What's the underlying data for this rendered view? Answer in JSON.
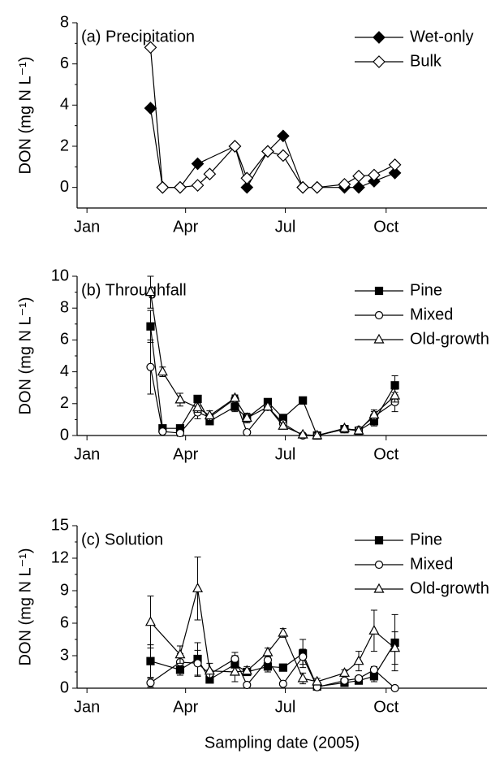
{
  "chart_data": [
    {
      "type": "line",
      "title": "(a) Precipitation",
      "ylabel": "DON (mg N L⁻¹)",
      "xlim": [
        -8,
        366
      ],
      "xticks": [
        {
          "value": 1,
          "label": "Jan"
        },
        {
          "value": 91,
          "label": "Apr"
        },
        {
          "value": 182,
          "label": "Jul"
        },
        {
          "value": 274,
          "label": "Oct"
        }
      ],
      "ylim": [
        -1,
        8
      ],
      "yticks": [
        0,
        2,
        4,
        6,
        8
      ],
      "series": [
        {
          "name": "Wet-only",
          "color": "#000000",
          "marker": "diamond",
          "filled": true,
          "x": [
            59,
            70,
            86,
            102,
            136,
            147,
            166,
            180,
            198,
            211,
            236,
            249,
            263,
            282
          ],
          "values": [
            3.85,
            0,
            0,
            1.15,
            2.0,
            0,
            1.75,
            2.5,
            0,
            0,
            0,
            0,
            0.3,
            0.7
          ]
        },
        {
          "name": "Bulk",
          "color": "#000000",
          "marker": "diamond",
          "filled": false,
          "x": [
            59,
            70,
            86,
            102,
            113,
            136,
            147,
            166,
            180,
            198,
            211,
            236,
            249,
            263,
            282
          ],
          "values": [
            6.8,
            0,
            0,
            0.1,
            0.65,
            2.0,
            0.45,
            1.75,
            1.55,
            0,
            0,
            0.15,
            0.55,
            0.6,
            1.1
          ]
        }
      ]
    },
    {
      "type": "line",
      "title": "(b) Throughfall",
      "ylabel": "DON (mg N L⁻¹)",
      "xlim": [
        -8,
        366
      ],
      "xticks": [
        {
          "value": 1,
          "label": "Jan"
        },
        {
          "value": 91,
          "label": "Apr"
        },
        {
          "value": 182,
          "label": "Jul"
        },
        {
          "value": 274,
          "label": "Oct"
        }
      ],
      "ylim": [
        0,
        10
      ],
      "yticks": [
        0,
        2,
        4,
        6,
        8,
        10
      ],
      "x": [
        59,
        70,
        86,
        102,
        113,
        136,
        147,
        166,
        180,
        198,
        211,
        236,
        249,
        263,
        282
      ],
      "series": [
        {
          "name": "Pine",
          "color": "#000000",
          "marker": "square",
          "filled": true,
          "values": [
            6.85,
            0.45,
            0.45,
            2.3,
            0.9,
            1.8,
            1.1,
            2.1,
            1.1,
            2.2,
            0,
            0.4,
            0.3,
            0.9,
            3.15
          ],
          "errors": [
            1.0,
            0.2,
            0.2,
            0.2,
            0.2,
            0.3,
            0.2,
            0.1,
            0.2,
            0.1,
            0.05,
            0.1,
            0.1,
            0.3,
            0.6
          ]
        },
        {
          "name": "Mixed",
          "color": "#000000",
          "marker": "circle",
          "filled": false,
          "values": [
            4.3,
            0.25,
            0.15,
            1.45,
            1.15,
            2.3,
            0.2,
            1.8,
            0.75,
            0,
            0,
            0.4,
            0.35,
            1.2,
            2.1
          ],
          "errors": [
            1.7,
            0.1,
            0.2,
            0.4,
            0.2,
            0.2,
            0.1,
            0.2,
            0.2,
            0,
            0,
            0.1,
            0.1,
            0.3,
            0.6
          ]
        },
        {
          "name": "Old-growth",
          "color": "#000000",
          "marker": "triangle",
          "filled": false,
          "values": [
            9.0,
            4.0,
            2.25,
            1.75,
            1.25,
            2.35,
            1.1,
            1.8,
            0.6,
            0.05,
            0,
            0.45,
            0.3,
            1.3,
            2.5
          ],
          "errors": [
            1.0,
            0.3,
            0.4,
            0.3,
            0.3,
            0.2,
            0.3,
            0.2,
            0.2,
            0.05,
            0,
            0.1,
            0.1,
            0.3,
            0.4
          ]
        }
      ]
    },
    {
      "type": "line",
      "title": "(c) Solution",
      "ylabel": "DON (mg N L⁻¹)",
      "xlabel": "Sampling date (2005)",
      "xlim": [
        -8,
        366
      ],
      "xticks": [
        {
          "value": 1,
          "label": "Jan"
        },
        {
          "value": 91,
          "label": "Apr"
        },
        {
          "value": 182,
          "label": "Jul"
        },
        {
          "value": 274,
          "label": "Oct"
        }
      ],
      "ylim": [
        0,
        15
      ],
      "yticks": [
        0,
        3,
        6,
        9,
        12,
        15
      ],
      "x": [
        59,
        86,
        102,
        113,
        136,
        147,
        166,
        180,
        198,
        211,
        236,
        249,
        263,
        282
      ],
      "series": [
        {
          "name": "Pine",
          "color": "#000000",
          "marker": "square",
          "filled": true,
          "values": [
            2.5,
            1.7,
            2.7,
            0.8,
            2.2,
            1.5,
            2.0,
            1.9,
            3.2,
            0.15,
            0.5,
            0.7,
            1.1,
            4.2
          ],
          "errors": [
            1.5,
            0.5,
            1.5,
            0.3,
            0.8,
            0.3,
            0.5,
            0.3,
            1.3,
            0.1,
            0.2,
            0.2,
            0.5,
            2.6
          ]
        },
        {
          "name": "Mixed",
          "color": "#000000",
          "marker": "circle",
          "filled": false,
          "values": [
            0.5,
            2.4,
            2.3,
            1.3,
            2.7,
            0.3,
            2.6,
            0.4,
            2.9,
            0.1,
            0.7,
            0.9,
            1.7,
            0
          ],
          "errors": [
            0.4,
            0.8,
            1.2,
            0.4,
            0.6,
            0.2,
            0.6,
            0.2,
            0.7,
            0.1,
            0.2,
            0.2,
            0.3,
            0
          ]
        },
        {
          "name": "Old-growth",
          "color": "#000000",
          "marker": "triangle",
          "filled": false,
          "values": [
            6.1,
            3.1,
            9.2,
            1.6,
            1.5,
            1.6,
            3.3,
            5.1,
            0.9,
            0.6,
            1.4,
            2.5,
            5.3,
            3.7
          ],
          "errors": [
            2.4,
            0.8,
            2.9,
            0.7,
            0.9,
            0.4,
            0.4,
            0.4,
            0.5,
            0.3,
            0.3,
            0.9,
            1.9,
            1.5
          ]
        }
      ]
    }
  ]
}
